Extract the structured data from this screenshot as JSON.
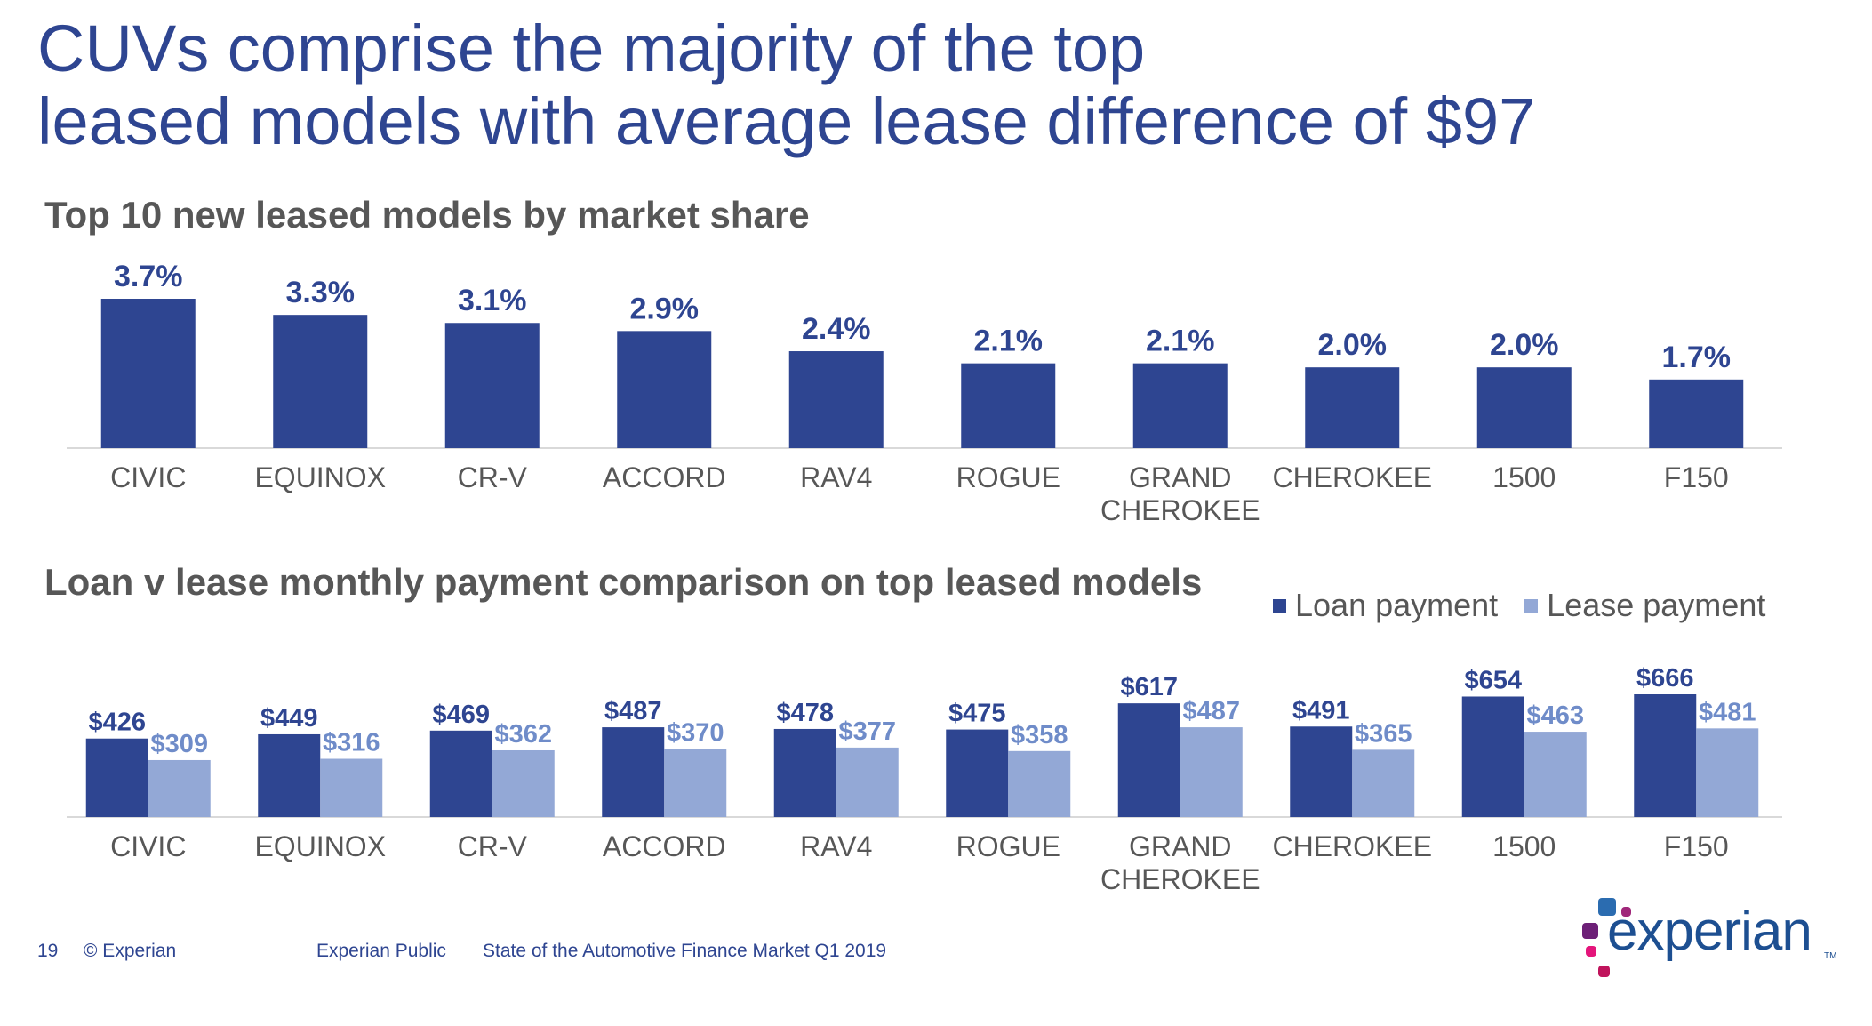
{
  "slide": {
    "title_line1": "CUVs comprise the majority of the top",
    "title_line2": "leased models with average lease difference of $97"
  },
  "colors": {
    "title": "#2e4591",
    "loan": "#2e4591",
    "lease": "#93a8d6",
    "axis": "#d9d9d9",
    "category_text": "#575757"
  },
  "chart_data": [
    {
      "type": "bar",
      "title": "Top 10 new leased models by market share",
      "categories": [
        "CIVIC",
        "EQUINOX",
        "CR-V",
        "ACCORD",
        "RAV4",
        "ROGUE",
        "GRAND CHEROKEE",
        "CHEROKEE",
        "1500",
        "F150"
      ],
      "values": [
        3.7,
        3.3,
        3.1,
        2.9,
        2.4,
        2.1,
        2.1,
        2.0,
        2.0,
        1.7
      ],
      "data_labels": [
        "3.7%",
        "3.3%",
        "3.1%",
        "2.9%",
        "2.4%",
        "2.1%",
        "2.1%",
        "2.0%",
        "2.0%",
        "1.7%"
      ],
      "unit": "%",
      "ylim": [
        0,
        3.7
      ],
      "grid": false,
      "legend": "none"
    },
    {
      "type": "bar",
      "title": "Loan v lease monthly payment comparison on top leased models",
      "categories": [
        "CIVIC",
        "EQUINOX",
        "CR-V",
        "ACCORD",
        "RAV4",
        "ROGUE",
        "GRAND CHEROKEE",
        "CHEROKEE",
        "1500",
        "F150"
      ],
      "series": [
        {
          "name": "Loan payment",
          "values": [
            426,
            449,
            469,
            487,
            478,
            475,
            617,
            491,
            654,
            666
          ],
          "labels": [
            "$426",
            "$449",
            "$469",
            "$487",
            "$478",
            "$475",
            "$617",
            "$491",
            "$654",
            "$666"
          ]
        },
        {
          "name": "Lease payment",
          "values": [
            309,
            316,
            362,
            370,
            377,
            358,
            487,
            365,
            463,
            481
          ],
          "labels": [
            "$309",
            "$316",
            "$362",
            "$370",
            "$377",
            "$358",
            "$487",
            "$365",
            "$463",
            "$481"
          ]
        }
      ],
      "unit": "$",
      "ylim": [
        0,
        666
      ],
      "grid": false,
      "legend": "top-right"
    }
  ],
  "footer": {
    "page_number": "19",
    "copyright": "© Experian",
    "classification": "Experian Public",
    "report": "State of the Automotive Finance Market Q1 2019"
  },
  "logo": {
    "text": "experian",
    "tm": "TM"
  }
}
